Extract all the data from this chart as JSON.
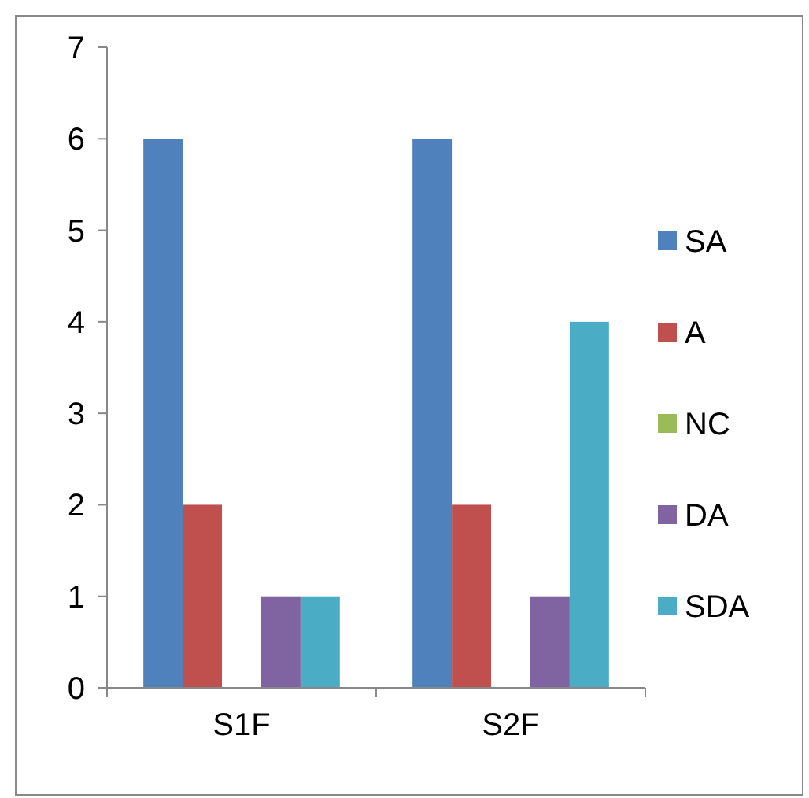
{
  "chart_data": {
    "type": "bar",
    "categories": [
      "S1F",
      "S2F"
    ],
    "series": [
      {
        "name": "SA",
        "color": "#4f81bd",
        "values": [
          6,
          6
        ]
      },
      {
        "name": "A",
        "color": "#c0504d",
        "values": [
          2,
          2
        ]
      },
      {
        "name": "NC",
        "color": "#9bbb59",
        "values": [
          0,
          0
        ]
      },
      {
        "name": "DA",
        "color": "#8064a2",
        "values": [
          1,
          1
        ]
      },
      {
        "name": "SDA",
        "color": "#4bacc6",
        "values": [
          1,
          4
        ]
      }
    ],
    "ylim": [
      0,
      7
    ],
    "yticks": [
      0,
      1,
      2,
      3,
      4,
      5,
      6,
      7
    ],
    "grid": false,
    "legend": "right"
  }
}
